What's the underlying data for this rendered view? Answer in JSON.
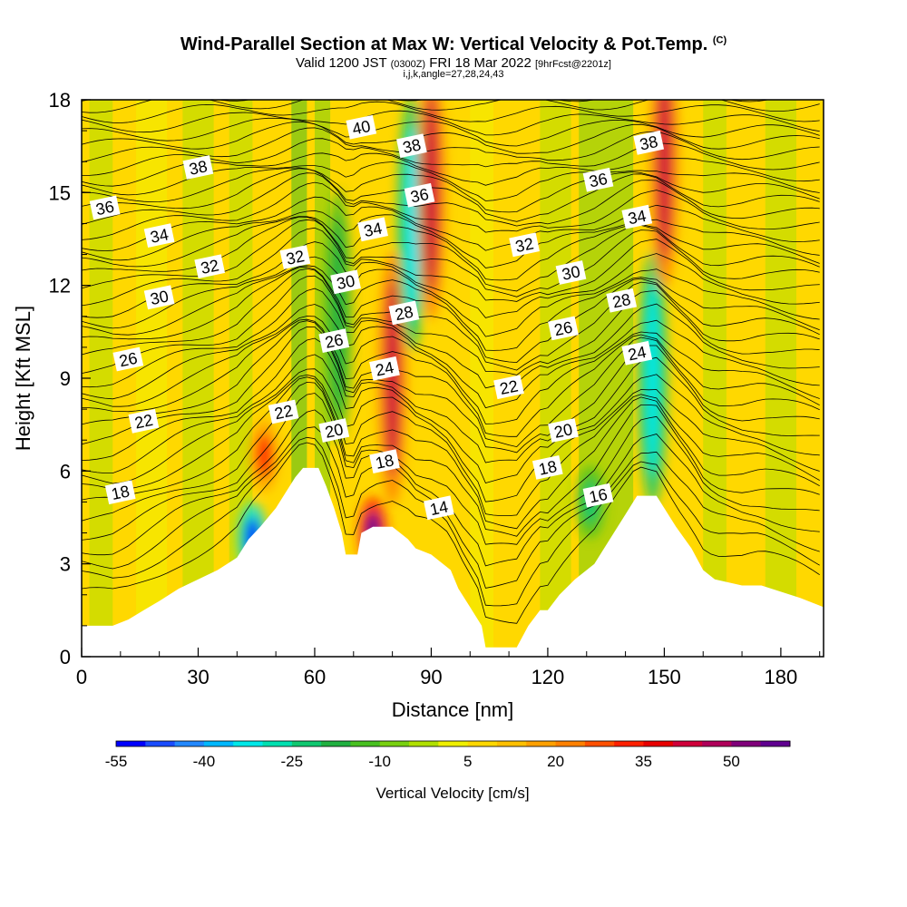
{
  "title": "Wind-Parallel Section at Max W: Vertical Velocity & Pot.Temp.",
  "title_mark": "(C)",
  "subtitle": {
    "valid": "Valid 1200 JST",
    "utc": "(0300Z)",
    "date": "FRI 18 Mar 2022",
    "fcst": "[9hrFcst@2201z]"
  },
  "ijk_label": "i,j,k,angle=27,28,24,43",
  "chart_data": {
    "type": "heatmap",
    "xlabel": "Distance [nm]",
    "ylabel": "Height [Kft MSL]",
    "xlim": [
      0,
      191
    ],
    "ylim": [
      0,
      18
    ],
    "x_ticks": [
      0,
      30,
      60,
      90,
      120,
      150,
      180
    ],
    "y_ticks": [
      0,
      3,
      6,
      9,
      12,
      15,
      18
    ],
    "colorbar": {
      "label": "Vertical Velocity [cm/s]",
      "min": -55,
      "max": 60,
      "step": 5,
      "tick_labels": [
        -55,
        -40,
        -25,
        -10,
        5,
        20,
        35,
        50
      ],
      "colors": [
        "#0000ff",
        "#1a4cff",
        "#2288ff",
        "#00b8ff",
        "#00e8e8",
        "#00e0b0",
        "#10c870",
        "#20b040",
        "#48c020",
        "#78d010",
        "#b0e000",
        "#f0f000",
        "#ffd800",
        "#ffc000",
        "#ffa000",
        "#ff8000",
        "#ff5000",
        "#ff2000",
        "#e80000",
        "#d0003a",
        "#b0005a",
        "#80007a",
        "#600090"
      ]
    },
    "terrain": [
      [
        0,
        1
      ],
      [
        8,
        1
      ],
      [
        12,
        1.2
      ],
      [
        16,
        1.5
      ],
      [
        20,
        1.8
      ],
      [
        25,
        2.2
      ],
      [
        30,
        2.5
      ],
      [
        35,
        2.8
      ],
      [
        40,
        3.2
      ],
      [
        43,
        3.8
      ],
      [
        46,
        4.2
      ],
      [
        50,
        4.8
      ],
      [
        53,
        5.4
      ],
      [
        55,
        5.8
      ],
      [
        57,
        6.1
      ],
      [
        61,
        6.1
      ],
      [
        63,
        5.5
      ],
      [
        65,
        4.8
      ],
      [
        67,
        4
      ],
      [
        68,
        3.3
      ],
      [
        71,
        3.3
      ],
      [
        72,
        4
      ],
      [
        75,
        4.2
      ],
      [
        80,
        4.2
      ],
      [
        84,
        3.8
      ],
      [
        86,
        3.5
      ],
      [
        90,
        3.3
      ],
      [
        95,
        2.8
      ],
      [
        97,
        2.2
      ],
      [
        100,
        1.6
      ],
      [
        103,
        1
      ],
      [
        104,
        0.3
      ],
      [
        112,
        0.3
      ],
      [
        115,
        1
      ],
      [
        118,
        1.5
      ],
      [
        120,
        1.5
      ],
      [
        123,
        2
      ],
      [
        127,
        2.5
      ],
      [
        132,
        3
      ],
      [
        137,
        4
      ],
      [
        140,
        4.6
      ],
      [
        143,
        5.2
      ],
      [
        148,
        5.2
      ],
      [
        150,
        4.8
      ],
      [
        153,
        4.2
      ],
      [
        157,
        3.5
      ],
      [
        160,
        2.8
      ],
      [
        163,
        2.5
      ],
      [
        170,
        2.3
      ],
      [
        175,
        2.3
      ],
      [
        180,
        2.1
      ],
      [
        185,
        1.9
      ],
      [
        191,
        1.6
      ]
    ],
    "w_features": [
      {
        "x": 44,
        "y": 3.8,
        "w": -55
      },
      {
        "x": 47,
        "y": 6.5,
        "w": 30
      },
      {
        "x": 66,
        "y": 11,
        "w": -20
      },
      {
        "x": 75,
        "y": 4,
        "w": 55
      },
      {
        "x": 80,
        "y": 9,
        "w": 40
      },
      {
        "x": 85,
        "y": 14,
        "w": -35
      },
      {
        "x": 90,
        "y": 15,
        "w": 40
      },
      {
        "x": 147,
        "y": 9,
        "w": -35
      },
      {
        "x": 150,
        "y": 16,
        "w": 40
      },
      {
        "x": 131,
        "y": 5,
        "w": -25
      }
    ],
    "theta_labels": [
      {
        "text": "18",
        "x": 10,
        "y": 5.3
      },
      {
        "text": "22",
        "x": 16,
        "y": 7.6
      },
      {
        "text": "26",
        "x": 12,
        "y": 9.6
      },
      {
        "text": "30",
        "x": 20,
        "y": 11.6
      },
      {
        "text": "32",
        "x": 33,
        "y": 12.6
      },
      {
        "text": "34",
        "x": 20,
        "y": 13.6
      },
      {
        "text": "36",
        "x": 6,
        "y": 14.5
      },
      {
        "text": "38",
        "x": 30,
        "y": 15.8
      },
      {
        "text": "22",
        "x": 52,
        "y": 7.9
      },
      {
        "text": "32",
        "x": 55,
        "y": 12.9
      },
      {
        "text": "26",
        "x": 65,
        "y": 10.2
      },
      {
        "text": "30",
        "x": 68,
        "y": 12.1
      },
      {
        "text": "20",
        "x": 65,
        "y": 7.3
      },
      {
        "text": "34",
        "x": 75,
        "y": 13.8
      },
      {
        "text": "40",
        "x": 72,
        "y": 17.1
      },
      {
        "text": "24",
        "x": 78,
        "y": 9.3
      },
      {
        "text": "18",
        "x": 78,
        "y": 6.3
      },
      {
        "text": "28",
        "x": 83,
        "y": 11.1
      },
      {
        "text": "38",
        "x": 85,
        "y": 16.5
      },
      {
        "text": "36",
        "x": 87,
        "y": 14.9
      },
      {
        "text": "14",
        "x": 92,
        "y": 4.8
      },
      {
        "text": "22",
        "x": 110,
        "y": 8.7
      },
      {
        "text": "32",
        "x": 114,
        "y": 13.3
      },
      {
        "text": "18",
        "x": 120,
        "y": 6.1
      },
      {
        "text": "20",
        "x": 124,
        "y": 7.3
      },
      {
        "text": "26",
        "x": 124,
        "y": 10.6
      },
      {
        "text": "30",
        "x": 126,
        "y": 12.4
      },
      {
        "text": "16",
        "x": 133,
        "y": 5.2
      },
      {
        "text": "36",
        "x": 133,
        "y": 15.4
      },
      {
        "text": "28",
        "x": 139,
        "y": 11.5
      },
      {
        "text": "24",
        "x": 143,
        "y": 9.8
      },
      {
        "text": "34",
        "x": 143,
        "y": 14.2
      },
      {
        "text": "38",
        "x": 146,
        "y": 16.6
      }
    ]
  }
}
